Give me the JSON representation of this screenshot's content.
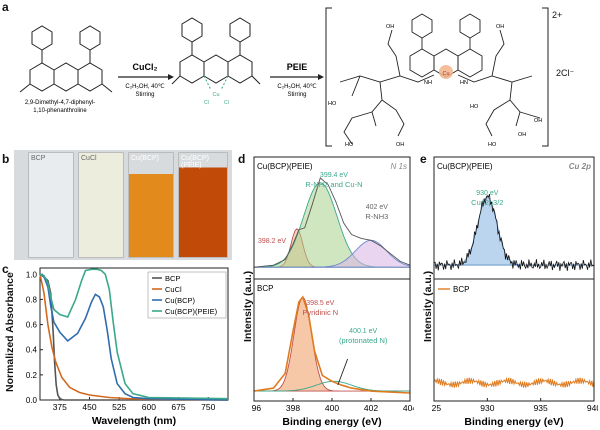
{
  "panel_a": {
    "label": "a",
    "reactant_name": "2,9-Dimethyl-4,7-diphenyl-\n1,10-phenanthroline",
    "reagent1": "CuCl2",
    "cond1a": "C2H5OH, 40℃",
    "cond1b": "Stirring",
    "reagent2": "PEIE",
    "cond2a": "C2H5OH, 40℃",
    "cond2b": "Stirring",
    "charge": "2+",
    "counterion": "2Cl⁻",
    "cl": "Cl",
    "cu": "Cu",
    "n": "N",
    "nh": "NH",
    "hn": "HN",
    "oh": "OH",
    "ho": "HO"
  },
  "panel_b": {
    "label": "b",
    "vial_labels": [
      "BCP",
      "CuCl",
      "Cu(BCP)",
      "Cu(BCP)(PEIE)"
    ],
    "vial_colors": [
      "#e9ecef",
      "#eceddd",
      "#e38a1c",
      "#c24a08"
    ]
  },
  "panel_c": {
    "label": "c",
    "colors": {
      "BCP": "#555555",
      "CuCl": "#d2691e",
      "CuBCP": "#2f6db0",
      "CuBCPPEIE": "#3aa88b"
    }
  },
  "panel_d": {
    "label": "d",
    "top_title": "Cu(BCP)(PEIE)",
    "top_tag": "N 1s",
    "bottom_title": "BCP",
    "ann_top1_value": "399.4 eV",
    "ann_top1_text": "R-NH2 and Cu-N",
    "ann_top2_value": "402 eV",
    "ann_top2_text": "R-NH3",
    "ann_top3": "398.2 eV",
    "ann_bot1_value": "398.5 eV",
    "ann_bot1_text": "Pyridinic N",
    "ann_bot2_value": "400.1 eV",
    "ann_bot2_text": "(protonated N)"
  },
  "panel_e": {
    "label": "e",
    "top_title": "Cu(BCP)(PEIE)",
    "top_tag": "Cu 2p",
    "ann_value": "930 eV",
    "ann_text": "Cu⁺2p3/2",
    "legend": "BCP"
  },
  "chart_data": [
    {
      "type": "line",
      "title": "",
      "xlabel": "Wavelength (nm)",
      "ylabel": "Normalized Absorbance",
      "xlim": [
        325,
        800
      ],
      "ylim": [
        0,
        1.05
      ],
      "xticks": [
        "375",
        "450",
        "525",
        "600",
        "675",
        "750"
      ],
      "yticks": [
        "0.0",
        "0.2",
        "0.4",
        "0.6",
        "0.8",
        "1.0"
      ],
      "legend_position": "top-right",
      "legend": [
        "BCP",
        "CuCl",
        "Cu(BCP)",
        "Cu(BCP)(PEIE)"
      ],
      "series": [
        {
          "name": "BCP",
          "x": [
            325,
            335,
            345,
            352,
            358,
            362,
            366,
            370,
            375,
            385,
            800
          ],
          "y": [
            1.0,
            0.98,
            0.95,
            0.85,
            0.55,
            0.3,
            0.12,
            0.04,
            0.01,
            0.0,
            0.0
          ]
        },
        {
          "name": "CuCl",
          "x": [
            325,
            335,
            345,
            355,
            365,
            380,
            400,
            425,
            450,
            500,
            550,
            800
          ],
          "y": [
            1.0,
            0.85,
            0.6,
            0.42,
            0.3,
            0.18,
            0.1,
            0.06,
            0.04,
            0.02,
            0.01,
            0.0
          ]
        },
        {
          "name": "Cu(BCP)",
          "x": [
            325,
            335,
            345,
            352,
            360,
            375,
            395,
            420,
            440,
            455,
            465,
            475,
            485,
            495,
            505,
            520,
            540,
            560,
            600,
            800
          ],
          "y": [
            1.0,
            0.98,
            0.9,
            0.75,
            0.62,
            0.54,
            0.47,
            0.53,
            0.65,
            0.78,
            0.84,
            0.82,
            0.74,
            0.55,
            0.33,
            0.13,
            0.05,
            0.02,
            0.01,
            0.0
          ]
        },
        {
          "name": "Cu(BCP)(PEIE)",
          "x": [
            325,
            335,
            345,
            352,
            360,
            375,
            395,
            415,
            430,
            440,
            455,
            470,
            480,
            490,
            500,
            510,
            520,
            540,
            560,
            600,
            800
          ],
          "y": [
            1.0,
            0.99,
            0.93,
            0.82,
            0.72,
            0.68,
            0.66,
            0.8,
            0.95,
            1.03,
            1.04,
            1.04,
            1.03,
            1.0,
            0.88,
            0.62,
            0.38,
            0.13,
            0.05,
            0.02,
            0.01
          ]
        }
      ]
    },
    {
      "type": "line",
      "title": "",
      "xlabel": "Binding energy (eV)",
      "ylabel": "Intensity (a.u.)",
      "xlim": [
        396,
        404
      ],
      "xticks": [
        "396",
        "398",
        "400",
        "402",
        "404"
      ],
      "series": [
        {
          "name": "Cu(BCP)(PEIE) N 1s",
          "x": [
            396,
            397,
            397.6,
            398,
            398.3,
            398.6,
            399,
            399.4,
            399.8,
            400.2,
            400.6,
            401,
            401.5,
            402,
            402.5,
            403,
            403.5,
            404
          ],
          "y": [
            0.04,
            0.06,
            0.12,
            0.28,
            0.43,
            0.45,
            0.7,
            0.97,
            0.9,
            0.72,
            0.5,
            0.38,
            0.34,
            0.32,
            0.26,
            0.18,
            0.1,
            0.06
          ]
        },
        {
          "name": "BCP N 1s",
          "x": [
            396,
            397,
            397.6,
            398,
            398.3,
            398.5,
            398.8,
            399.1,
            399.5,
            400,
            400.5,
            401,
            402,
            403,
            404
          ],
          "y": [
            0.04,
            0.07,
            0.22,
            0.65,
            0.95,
            1.0,
            0.82,
            0.45,
            0.2,
            0.14,
            0.1,
            0.07,
            0.04,
            0.03,
            0.02
          ]
        }
      ]
    },
    {
      "type": "line",
      "title": "",
      "xlabel": "Binding energy (eV)",
      "ylabel": "Intensity (a.u.)",
      "xlim": [
        925,
        940
      ],
      "xticks": [
        "925",
        "930",
        "935",
        "940"
      ],
      "series": [
        {
          "name": "Cu(BCP)(PEIE) Cu 2p",
          "x": [
            925,
            926,
            927,
            928,
            928.8,
            929.5,
            930,
            930.5,
            931.2,
            932,
            933,
            934,
            936,
            938,
            940
          ],
          "y": [
            0.08,
            0.09,
            0.12,
            0.22,
            0.5,
            0.86,
            1.0,
            0.86,
            0.5,
            0.22,
            0.12,
            0.09,
            0.08,
            0.08,
            0.08
          ]
        },
        {
          "name": "BCP",
          "x": [
            925,
            927,
            929,
            931,
            933,
            935,
            937,
            940
          ],
          "y": [
            0.12,
            0.12,
            0.12,
            0.12,
            0.12,
            0.12,
            0.12,
            0.12
          ]
        }
      ]
    }
  ]
}
